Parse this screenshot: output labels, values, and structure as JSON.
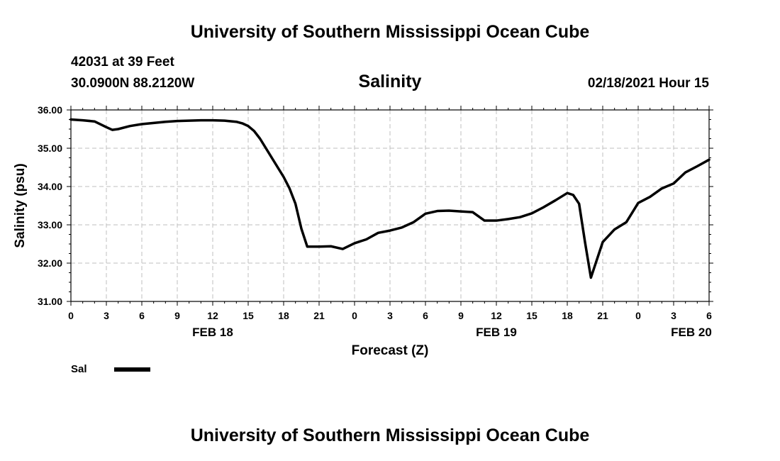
{
  "header": {
    "title": "University of Southern Mississippi Ocean Cube",
    "station": "42031 at 39 Feet",
    "location": "30.0900N 88.2120W",
    "parameter": "Salinity",
    "timestamp": "02/18/2021 Hour 15"
  },
  "footer": {
    "title": "University of Southern Mississippi Ocean Cube"
  },
  "chart_data": {
    "type": "line",
    "title": "Salinity",
    "xlabel": "Forecast (Z)",
    "ylabel": "Salinity (psu)",
    "xlim": [
      0,
      54
    ],
    "ylim": [
      31.0,
      36.0
    ],
    "grid": true,
    "legend_position": "bottom-left",
    "x_ticks": [
      {
        "hour": 0,
        "label": "0"
      },
      {
        "hour": 3,
        "label": "3"
      },
      {
        "hour": 6,
        "label": "6"
      },
      {
        "hour": 9,
        "label": "9"
      },
      {
        "hour": 12,
        "label": "12"
      },
      {
        "hour": 15,
        "label": "15"
      },
      {
        "hour": 18,
        "label": "18"
      },
      {
        "hour": 21,
        "label": "21"
      },
      {
        "hour": 24,
        "label": "0"
      },
      {
        "hour": 27,
        "label": "3"
      },
      {
        "hour": 30,
        "label": "6"
      },
      {
        "hour": 33,
        "label": "9"
      },
      {
        "hour": 36,
        "label": "12"
      },
      {
        "hour": 39,
        "label": "15"
      },
      {
        "hour": 42,
        "label": "18"
      },
      {
        "hour": 45,
        "label": "21"
      },
      {
        "hour": 48,
        "label": "0"
      },
      {
        "hour": 51,
        "label": "3"
      },
      {
        "hour": 54,
        "label": "6"
      }
    ],
    "date_labels": [
      {
        "hour": 12,
        "label": "FEB 18"
      },
      {
        "hour": 36,
        "label": "FEB 19"
      },
      {
        "hour": 52.5,
        "label": "FEB 20"
      }
    ],
    "y_ticks": [
      "31.00",
      "32.00",
      "33.00",
      "34.00",
      "35.00",
      "36.00"
    ],
    "series": [
      {
        "name": "Sal",
        "color": "#000000",
        "x": [
          0,
          1,
          2,
          3,
          3.5,
          4,
          5,
          6,
          7,
          8,
          9,
          10,
          11,
          12,
          13,
          14,
          14.5,
          15,
          15.5,
          16,
          17,
          18,
          18.5,
          19,
          19.5,
          20,
          21,
          22,
          23,
          24,
          25,
          26,
          27,
          28,
          29,
          30,
          31,
          32,
          33,
          34,
          35,
          36,
          37,
          38,
          39,
          40,
          41,
          42,
          42.5,
          43,
          43.5,
          44,
          45,
          46,
          47,
          48,
          49,
          50,
          51,
          52,
          53,
          54
        ],
        "y": [
          35.75,
          35.73,
          35.7,
          35.55,
          35.48,
          35.5,
          35.58,
          35.63,
          35.66,
          35.69,
          35.71,
          35.72,
          35.73,
          35.73,
          35.72,
          35.69,
          35.65,
          35.58,
          35.45,
          35.25,
          34.75,
          34.25,
          33.95,
          33.55,
          32.9,
          32.43,
          32.43,
          32.44,
          32.37,
          32.52,
          32.62,
          32.79,
          32.85,
          32.93,
          33.07,
          33.29,
          33.36,
          33.37,
          33.35,
          33.33,
          33.11,
          33.11,
          33.15,
          33.2,
          33.3,
          33.46,
          33.64,
          33.83,
          33.78,
          33.55,
          32.55,
          31.62,
          32.55,
          32.88,
          33.07,
          33.57,
          33.73,
          33.95,
          34.08,
          34.37,
          34.53,
          34.7
        ]
      }
    ]
  }
}
